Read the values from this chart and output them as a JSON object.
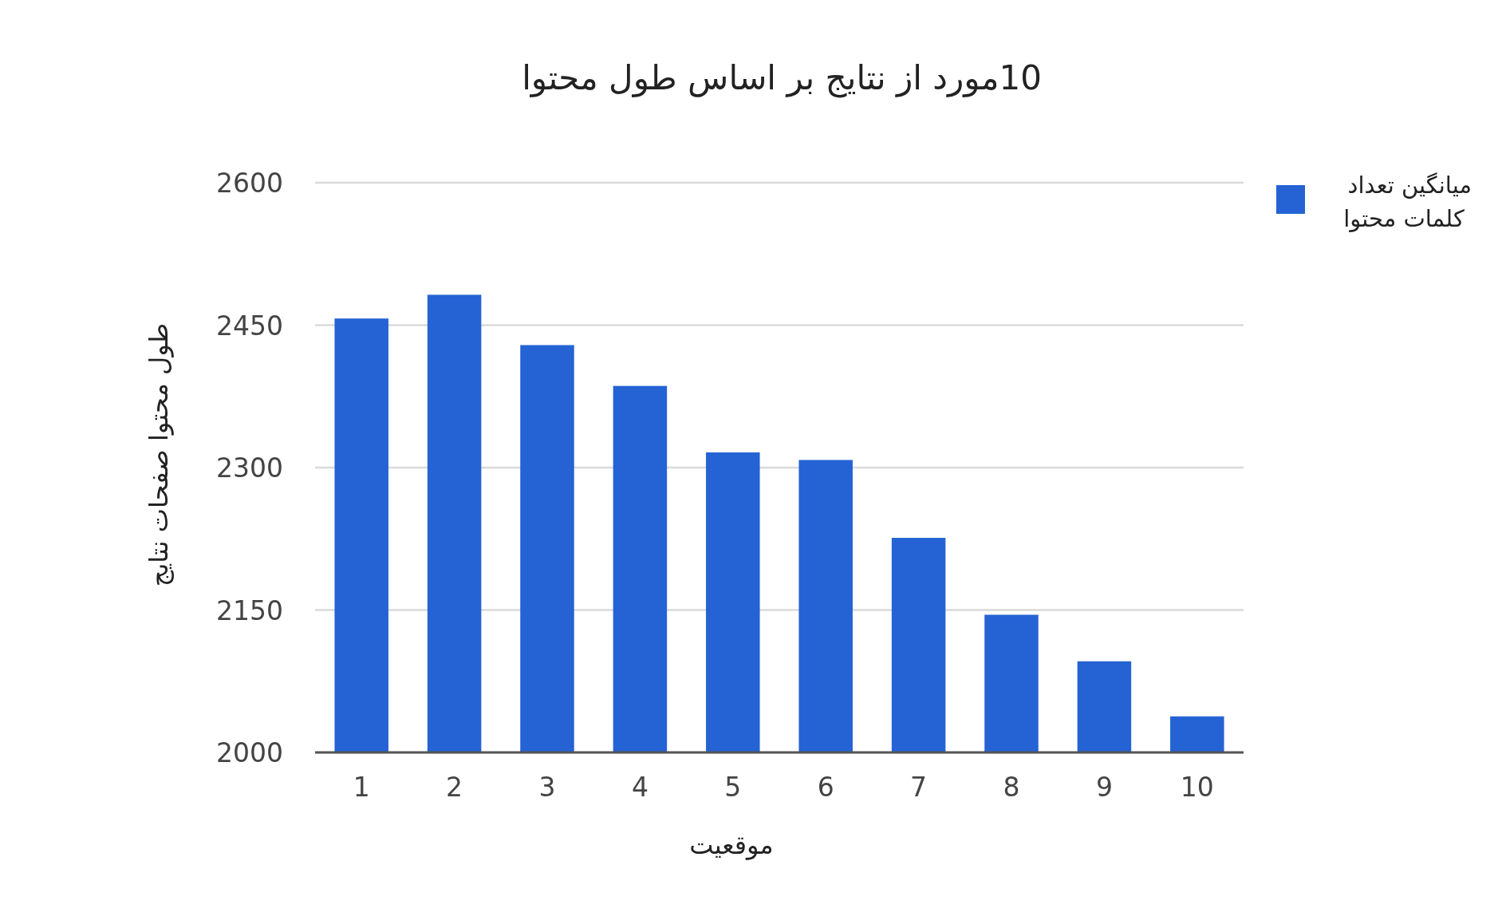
{
  "chart_data": {
    "type": "bar",
    "title": "10مورد از نتایج بر اساس طول محتوا",
    "xlabel": "موقعیت",
    "ylabel": "طول محتوا صفحات نتایج",
    "categories": [
      "1",
      "2",
      "3",
      "4",
      "5",
      "6",
      "7",
      "8",
      "9",
      "10"
    ],
    "series": [
      {
        "name": "میانگین تعداد کلمات محتوا",
        "color": "#2563d4",
        "values": [
          2457,
          2482,
          2429,
          2386,
          2316,
          2308,
          2226,
          2145,
          2096,
          2038
        ]
      }
    ],
    "ylim": [
      2000,
      2600
    ],
    "yticks": [
      2000,
      2150,
      2300,
      2450,
      2600
    ],
    "grid": "y",
    "legend": "top right"
  }
}
